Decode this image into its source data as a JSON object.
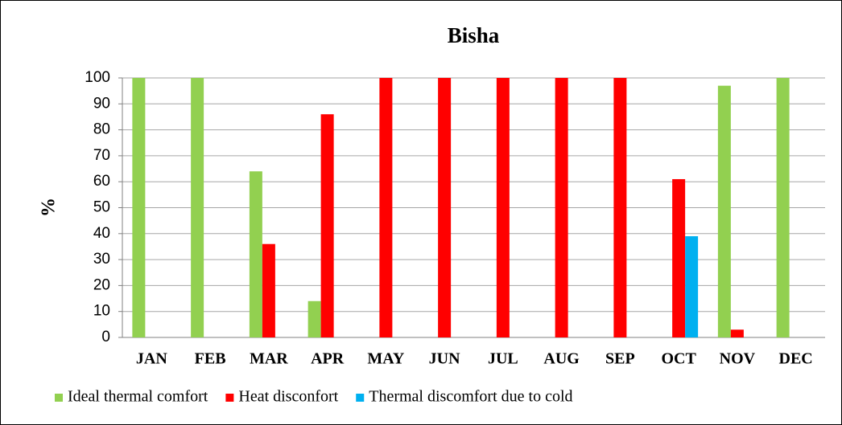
{
  "chart_data": {
    "type": "bar",
    "title": "Bisha",
    "y_label": "%",
    "categories": [
      "JAN",
      "FEB",
      "MAR",
      "APR",
      "MAY",
      "JUN",
      "JUL",
      "AUG",
      "SEP",
      "OCT",
      "NOV",
      "DEC"
    ],
    "series": [
      {
        "name": "Ideal thermal comfort",
        "color": "#92d050",
        "values": [
          100,
          100,
          64,
          14,
          0,
          0,
          0,
          0,
          0,
          0,
          97,
          100
        ]
      },
      {
        "name": "Heat disconfort",
        "color": "#ff0000",
        "values": [
          0,
          0,
          36,
          86,
          100,
          100,
          100,
          100,
          100,
          61,
          3,
          0
        ]
      },
      {
        "name": "Thermal discomfort due to cold",
        "color": "#00b0f0",
        "values": [
          0,
          0,
          0,
          0,
          0,
          0,
          0,
          0,
          0,
          39,
          0,
          0
        ]
      }
    ],
    "ylim": [
      0,
      100
    ],
    "yticks": [
      0,
      10,
      20,
      30,
      40,
      50,
      60,
      70,
      80,
      90,
      100
    ],
    "grid": true,
    "legend": "bottom"
  }
}
